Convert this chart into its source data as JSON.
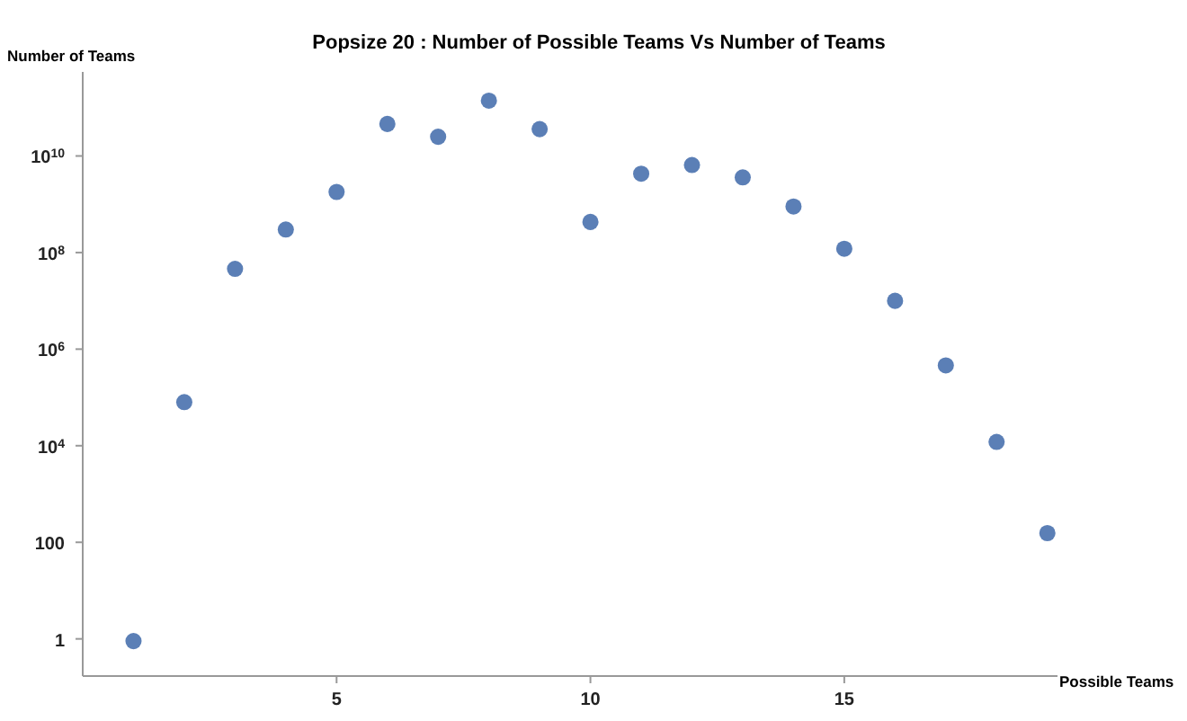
{
  "chart_data": {
    "type": "scatter",
    "title": "Popsize 20 : Number of Possible Teams Vs Number of Teams",
    "xlabel": "Possible Teams",
    "ylabel": "Number of Teams",
    "x": [
      1,
      2,
      3,
      4,
      5,
      6,
      7,
      8,
      9,
      10,
      11,
      12,
      13,
      14,
      15,
      16,
      17,
      18,
      19
    ],
    "series": [
      {
        "color": "#5b7fb6",
        "values": [
          0.9,
          80000,
          46000000,
          300000000,
          1800000000,
          46000000000,
          25000000000,
          140000000000,
          36000000000,
          430000000,
          4300000000,
          6500000000,
          3600000000,
          900000000,
          120000000,
          10000000,
          460000,
          12000,
          155
        ]
      }
    ],
    "log": "y",
    "marker": "circle",
    "grid": false,
    "legend": false,
    "xlim": [
      0,
      19.2
    ],
    "xticks": [
      5,
      10,
      15
    ],
    "ylim": [
      0.17,
      550000000000
    ],
    "yticks": [
      1,
      100,
      {
        "value": 10000,
        "label": "10$^{4}$"
      },
      {
        "value": 1000000,
        "label": "10$^{6}$"
      },
      {
        "value": 100000000,
        "label": "10$^{8}$"
      },
      {
        "value": 10000000000,
        "label": "10$^{10}$"
      }
    ]
  }
}
